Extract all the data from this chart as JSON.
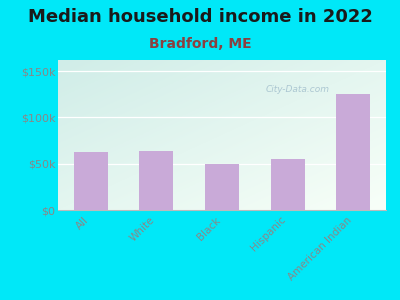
{
  "title": "Median household income in 2022",
  "subtitle": "Bradford, ME",
  "categories": [
    "All",
    "White",
    "Black",
    "Hispanic",
    "American Indian"
  ],
  "values": [
    63000,
    64000,
    50000,
    55000,
    125000
  ],
  "bar_color": "#c9aad8",
  "background_outer": "#00e8f8",
  "title_color": "#1a1a1a",
  "subtitle_color": "#8b4040",
  "tick_color": "#888888",
  "ylabel_ticks": [
    "$0",
    "$50k",
    "$100k",
    "$150k"
  ],
  "ylabel_values": [
    0,
    50000,
    100000,
    150000
  ],
  "ylim": [
    0,
    162000
  ],
  "watermark": "City-Data.com",
  "title_fontsize": 13,
  "subtitle_fontsize": 10,
  "bg_top_left": "#d0ede8",
  "bg_bottom_right": "#f5fff5"
}
